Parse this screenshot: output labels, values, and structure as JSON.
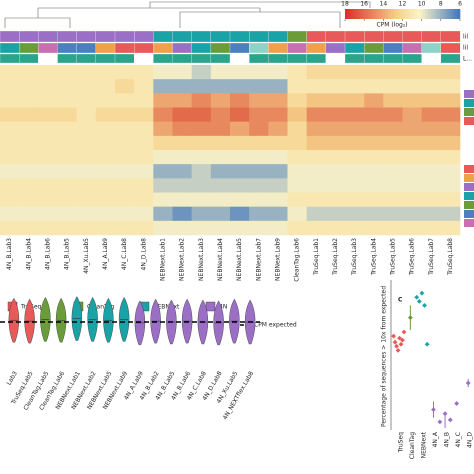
{
  "chart_data": [
    {
      "type": "heatmap",
      "colorbar_label": "CPM (log₂)",
      "colorbar_ticks": [
        18,
        16,
        14,
        12,
        10,
        8,
        6
      ],
      "zlim": [
        6,
        18
      ],
      "annotation_labels": [
        "lil",
        "lil",
        "L..."
      ],
      "columns": [
        "4N_B.Lab3",
        "4N_B.Lab4",
        "4N_B.Lab6",
        "4N_B.Lab5",
        "4N_Xu.Lab5",
        "4N_A.Lab9",
        "4N_C.Lab8",
        "4N_D.Lab8",
        "NEBNext.Lab1",
        "NEBNext.Lab2",
        "NEBNext.Lab3",
        "NEBNext.Lab4",
        "NEBNext.Lab5",
        "NEBNext.Lab7",
        "NEBNext.Lab9",
        "CleanTag.Lab6",
        "TruSeq.Lab1",
        "TruSeq.Lab2",
        "TruSeq.Lab3",
        "TruSeq.Lab4",
        "TruSeq.Lab5",
        "TruSeq.Lab6",
        "TruSeq.Lab7",
        "TruSeq.Lab8"
      ],
      "column_protocols": [
        "4N",
        "4N",
        "4N",
        "4N",
        "4N",
        "4N",
        "4N",
        "4N",
        "NEBNext",
        "NEBNext",
        "NEBNext",
        "NEBNext",
        "NEBNext",
        "NEBNext",
        "NEBNext",
        "CleanTag",
        "TruSeq",
        "TruSeq",
        "TruSeq",
        "TruSeq",
        "TruSeq",
        "TruSeq",
        "TruSeq",
        "TruSeq"
      ],
      "values": [
        [
          11,
          11,
          11,
          11,
          11,
          11,
          11,
          11,
          10,
          10,
          9,
          10,
          10,
          10,
          10,
          11,
          12,
          12,
          12,
          12,
          12,
          12,
          12,
          12
        ],
        [
          11,
          11,
          11,
          11,
          11,
          11,
          12,
          11,
          8,
          8,
          8,
          8,
          8,
          8,
          8,
          11,
          11,
          11,
          11,
          11,
          11,
          11,
          11,
          11
        ],
        [
          11,
          11,
          11,
          11,
          11,
          11,
          11,
          11,
          14,
          14,
          15,
          14,
          15,
          14,
          14,
          12,
          13,
          13,
          13,
          14,
          13,
          13,
          13,
          13
        ],
        [
          12,
          12,
          12,
          12,
          11,
          12,
          12,
          12,
          15,
          16,
          16,
          15,
          16,
          15,
          15,
          13,
          15,
          15,
          15,
          15,
          15,
          14,
          15,
          15
        ],
        [
          11,
          11,
          11,
          11,
          11,
          11,
          11,
          11,
          14,
          15,
          15,
          15,
          14,
          15,
          14,
          12,
          14,
          14,
          14,
          14,
          14,
          14,
          14,
          14
        ],
        [
          11,
          11,
          11,
          11,
          11,
          11,
          11,
          11,
          12,
          12,
          12,
          12,
          12,
          12,
          12,
          12,
          13,
          13,
          13,
          13,
          13,
          13,
          13,
          13
        ],
        [
          11,
          11,
          11,
          11,
          11,
          11,
          11,
          11,
          10,
          10,
          10,
          10,
          10,
          10,
          10,
          11,
          11,
          11,
          11,
          11,
          11,
          11,
          11,
          11
        ],
        [
          10,
          10,
          10,
          10,
          10,
          10,
          10,
          10,
          8,
          8,
          9,
          8,
          8,
          8,
          8,
          10,
          10,
          10,
          10,
          10,
          10,
          10,
          10,
          10
        ],
        [
          11,
          11,
          11,
          11,
          11,
          11,
          11,
          11,
          9,
          9,
          9,
          9,
          9,
          9,
          9,
          10,
          10,
          10,
          10,
          10,
          10,
          10,
          10,
          10
        ],
        [
          11,
          11,
          11,
          11,
          11,
          11,
          11,
          11,
          10,
          10,
          10,
          10,
          10,
          10,
          10,
          11,
          11,
          11,
          11,
          11,
          11,
          11,
          11,
          11
        ],
        [
          10,
          10,
          10,
          10,
          10,
          10,
          10,
          10,
          8,
          7,
          8,
          8,
          7,
          8,
          8,
          10,
          9,
          9,
          9,
          9,
          9,
          9,
          9,
          9
        ],
        [
          11,
          11,
          11,
          11,
          11,
          11,
          11,
          11,
          10,
          10,
          10,
          10,
          10,
          10,
          10,
          11,
          11,
          11,
          11,
          11,
          11,
          11,
          11,
          11
        ]
      ]
    },
    {
      "type": "violin",
      "series": [
        {
          "name": "TruSeq",
          "color": "#e8595a"
        },
        {
          "name": "CleanTag",
          "color": "#6a9d3a"
        },
        {
          "name": "NEBNext",
          "color": "#1aa3a6"
        },
        {
          "name": "4N",
          "color": "#9b6fc6"
        }
      ],
      "expected_label": "CPM expected",
      "expected": 0,
      "categories": [
        "Lab3",
        "TruSeq.Lab5",
        "CleanTag.Lab5",
        "CleanTag.Lab6",
        "NEBNext.Lab1",
        "NEBNext.Lab2",
        "NEBNext.Lab5",
        "NEBNext.Lab9",
        "4N_A.Lab9",
        "4N_B.Lab2",
        "4N_B.Lab5",
        "4N_B.Lab6",
        "4N_C.Lab8",
        "4N_D.Lab8",
        "4N_Xu.Lab5",
        "4N_NEXTflex.Lab8"
      ],
      "groups": [
        "TruSeq",
        "TruSeq",
        "CleanTag",
        "CleanTag",
        "NEBNext",
        "NEBNext",
        "NEBNext",
        "NEBNext",
        "4N",
        "4N",
        "4N",
        "4N",
        "4N",
        "4N",
        "4N",
        "4N"
      ],
      "values": [
        0.2,
        0.1,
        0.3,
        0.2,
        0.4,
        0.3,
        0.2,
        0.3,
        -0.1,
        0.1,
        0,
        0.1,
        0,
        -0.1,
        0.1,
        0
      ],
      "ylim": [
        -4,
        4
      ]
    },
    {
      "type": "scatter",
      "panel": "C",
      "ylabel": "Percentage of sequences > 10x from expected",
      "categories": [
        "TruSeq",
        "CleanTag",
        "NEBNext",
        "4N_A",
        "4N_B",
        "4N_C",
        "4N_D"
      ],
      "colors": [
        "#e8595a",
        "#6a9d3a",
        "#1aa3a6",
        "#9b6fc6",
        "#9b6fc6",
        "#9b6fc6",
        "#9b6fc6"
      ],
      "values": [
        [
          45,
          42,
          40,
          38,
          44,
          41,
          43,
          47
        ],
        [
          54
        ],
        [
          64,
          62,
          66,
          60,
          41
        ],
        [
          9
        ],
        [
          3,
          7,
          4
        ],
        [
          12
        ],
        [
          22
        ]
      ],
      "errors": [
        [
          0
        ],
        [
          6
        ],
        [
          0
        ],
        [
          4
        ],
        [
          3
        ],
        [
          1
        ],
        [
          2
        ]
      ],
      "ylim": [
        0,
        70
      ]
    }
  ]
}
